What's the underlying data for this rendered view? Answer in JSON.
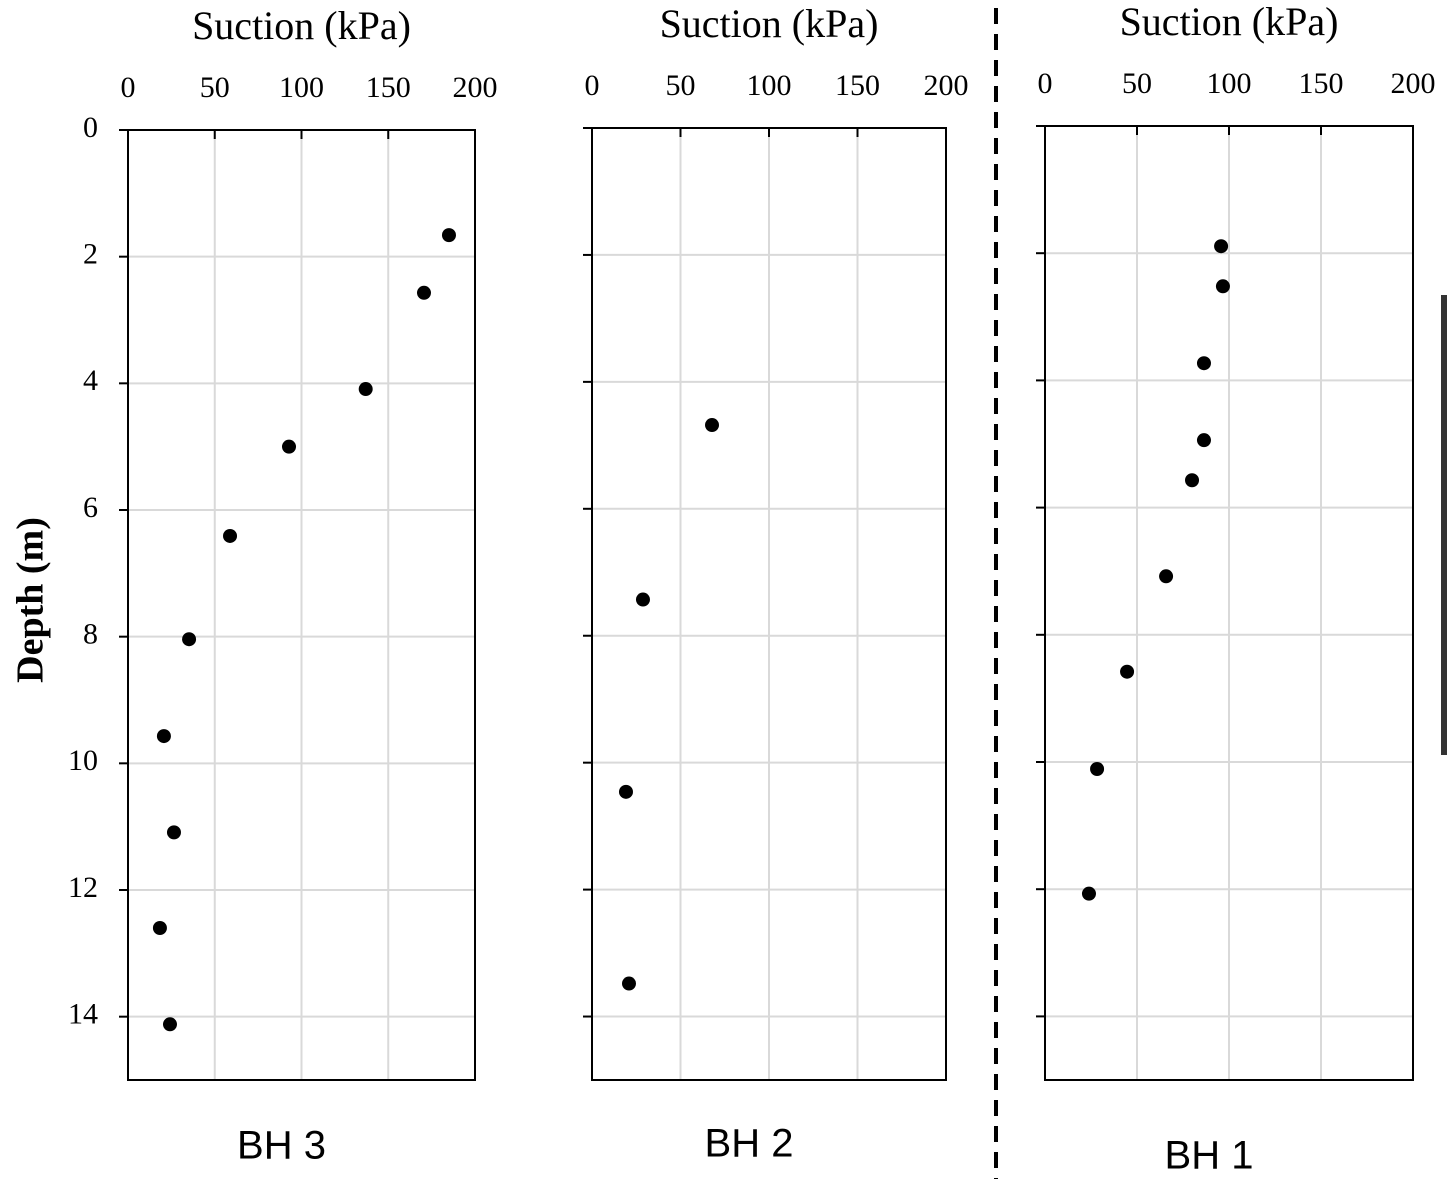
{
  "chart_data": [
    {
      "type": "scatter",
      "title": "Suction (kPa)",
      "y_label": "Depth (m)",
      "annotation": "BH 3",
      "color": "#000000",
      "grid": true,
      "invert_y": true,
      "xlim": [
        0,
        200
      ],
      "xticks": [
        0,
        50,
        100,
        150,
        200
      ],
      "ylim": [
        0,
        15
      ],
      "yticks": [
        0,
        2,
        4,
        6,
        8,
        10,
        12,
        14
      ],
      "x": [
        185.0,
        170.6,
        137.0,
        92.8,
        58.8,
        35.2,
        20.7,
        26.5,
        18.4,
        24.2
      ],
      "values": [
        1.66,
        2.57,
        4.09,
        5.0,
        6.41,
        8.04,
        9.57,
        11.09,
        12.6,
        14.12
      ]
    },
    {
      "type": "scatter",
      "title": "Suction (kPa)",
      "annotation": "BH 2",
      "color": "#000000",
      "grid": true,
      "invert_y": true,
      "xlim": [
        0,
        200
      ],
      "xticks": [
        0,
        50,
        100,
        150,
        200
      ],
      "ylim": [
        0,
        15
      ],
      "yticks": [
        0,
        2,
        4,
        6,
        8,
        10,
        12,
        14
      ],
      "x": [
        67.8,
        28.8,
        19.2,
        20.9
      ],
      "values": [
        4.68,
        7.43,
        10.46,
        13.48
      ]
    },
    {
      "type": "scatter",
      "title": "Suction (kPa)",
      "annotation": "BH 1",
      "color": "#000000",
      "grid": true,
      "invert_y": true,
      "xlim": [
        0,
        200
      ],
      "xticks": [
        0,
        50,
        100,
        150,
        200
      ],
      "ylim": [
        0,
        15
      ],
      "yticks": [
        0,
        2,
        4,
        6,
        8,
        10,
        12,
        14
      ],
      "x": [
        95.7,
        96.7,
        86.4,
        86.4,
        79.9,
        65.8,
        44.6,
        28.3,
        23.9
      ],
      "values": [
        1.89,
        2.52,
        3.73,
        4.94,
        5.57,
        7.08,
        8.58,
        10.11,
        12.07
      ]
    }
  ]
}
